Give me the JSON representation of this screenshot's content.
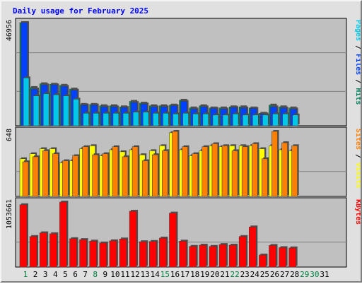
{
  "chart_data": {
    "title": "Daily usage for February 2025",
    "type": "bar",
    "days": [
      "1",
      "2",
      "3",
      "4",
      "5",
      "6",
      "7",
      "8",
      "9",
      "10",
      "11",
      "12",
      "13",
      "14",
      "15",
      "16",
      "17",
      "18",
      "19",
      "20",
      "21",
      "22",
      "23",
      "24",
      "25",
      "26",
      "27",
      "28",
      "29",
      "30",
      "31"
    ],
    "weekend_days": [
      "1",
      "8",
      "15",
      "22",
      "29",
      "30"
    ],
    "panels": [
      {
        "name": "hits-files-pages",
        "max_label": "46956",
        "max": 46956,
        "right_label": [
          {
            "text": "Pages",
            "color": "#00c8e8"
          },
          {
            "text": " / ",
            "color": "#000000"
          },
          {
            "text": "Files",
            "color": "#0040ff"
          },
          {
            "text": " / ",
            "color": "#000000"
          },
          {
            "text": "Hits",
            "color": "#00805c"
          }
        ],
        "series": [
          {
            "name": "Hits",
            "color": "#00805c",
            "values": [
              46956,
              17400,
              19100,
              18900,
              18400,
              16700,
              9700,
              9700,
              9100,
              9100,
              8600,
              11100,
              10300,
              9100,
              9100,
              9400,
              11600,
              8100,
              9100,
              8100,
              8100,
              8600,
              8600,
              8100,
              5700,
              9400,
              8600,
              8100,
              0,
              0,
              0
            ]
          },
          {
            "name": "Files",
            "color": "#0040ff",
            "values": [
              46956,
              16700,
              18600,
              18600,
              17900,
              16200,
              9400,
              9400,
              8600,
              8600,
              8300,
              10600,
              9900,
              8600,
              8600,
              9100,
              11100,
              7600,
              8600,
              7900,
              7600,
              8300,
              8100,
              7900,
              5400,
              8600,
              8100,
              7600,
              0,
              0,
              0
            ]
          },
          {
            "name": "Pages",
            "color": "#00c8e8",
            "values": [
              21800,
              13600,
              14600,
              14100,
              13600,
              12100,
              5700,
              5700,
              5700,
              5700,
              5700,
              6200,
              6200,
              5700,
              5700,
              5400,
              5700,
              5400,
              5400,
              4900,
              4900,
              5400,
              4900,
              4900,
              4900,
              5400,
              5400,
              4900,
              0,
              0,
              0
            ]
          }
        ]
      },
      {
        "name": "visits-sites",
        "max_label": "648",
        "max": 648,
        "right_label": [
          {
            "text": "Sites",
            "color": "#ff8000"
          },
          {
            "text": " / ",
            "color": "#000000"
          },
          {
            "text": "Visits",
            "color": "#ffff00"
          }
        ],
        "series": [
          {
            "name": "Visits",
            "color": "#ffff00",
            "values": [
              375,
              425,
              475,
              475,
              335,
              355,
              475,
              505,
              405,
              465,
              445,
              465,
              415,
              455,
              505,
              635,
              465,
              405,
              455,
              505,
              495,
              505,
              505,
              505,
              475,
              505,
              465,
              455,
              0,
              0,
              0
            ]
          },
          {
            "name": "Sites",
            "color": "#ff8000",
            "values": [
              345,
              395,
              455,
              425,
              355,
              405,
              495,
              415,
              425,
              495,
              395,
              495,
              355,
              415,
              455,
              648,
              495,
              425,
              495,
              525,
              505,
              455,
              495,
              525,
              375,
              648,
              535,
              505,
              0,
              0,
              0
            ]
          }
        ]
      },
      {
        "name": "kbytes",
        "max_label": "1053661",
        "max": 1053661,
        "right_label": [
          {
            "text": "KBytes",
            "color": "#ff0000"
          }
        ],
        "series": [
          {
            "name": "KBytes",
            "color": "#ff0000",
            "values": [
              1010000,
              495000,
              555000,
              540000,
              1053661,
              460000,
              445000,
              420000,
              390000,
              425000,
              455000,
              905000,
              410000,
              415000,
              470000,
              875000,
              420000,
              335000,
              355000,
              335000,
              365000,
              355000,
              495000,
              650000,
              195000,
              350000,
              315000,
              310000,
              0,
              0,
              0
            ]
          }
        ]
      }
    ]
  }
}
